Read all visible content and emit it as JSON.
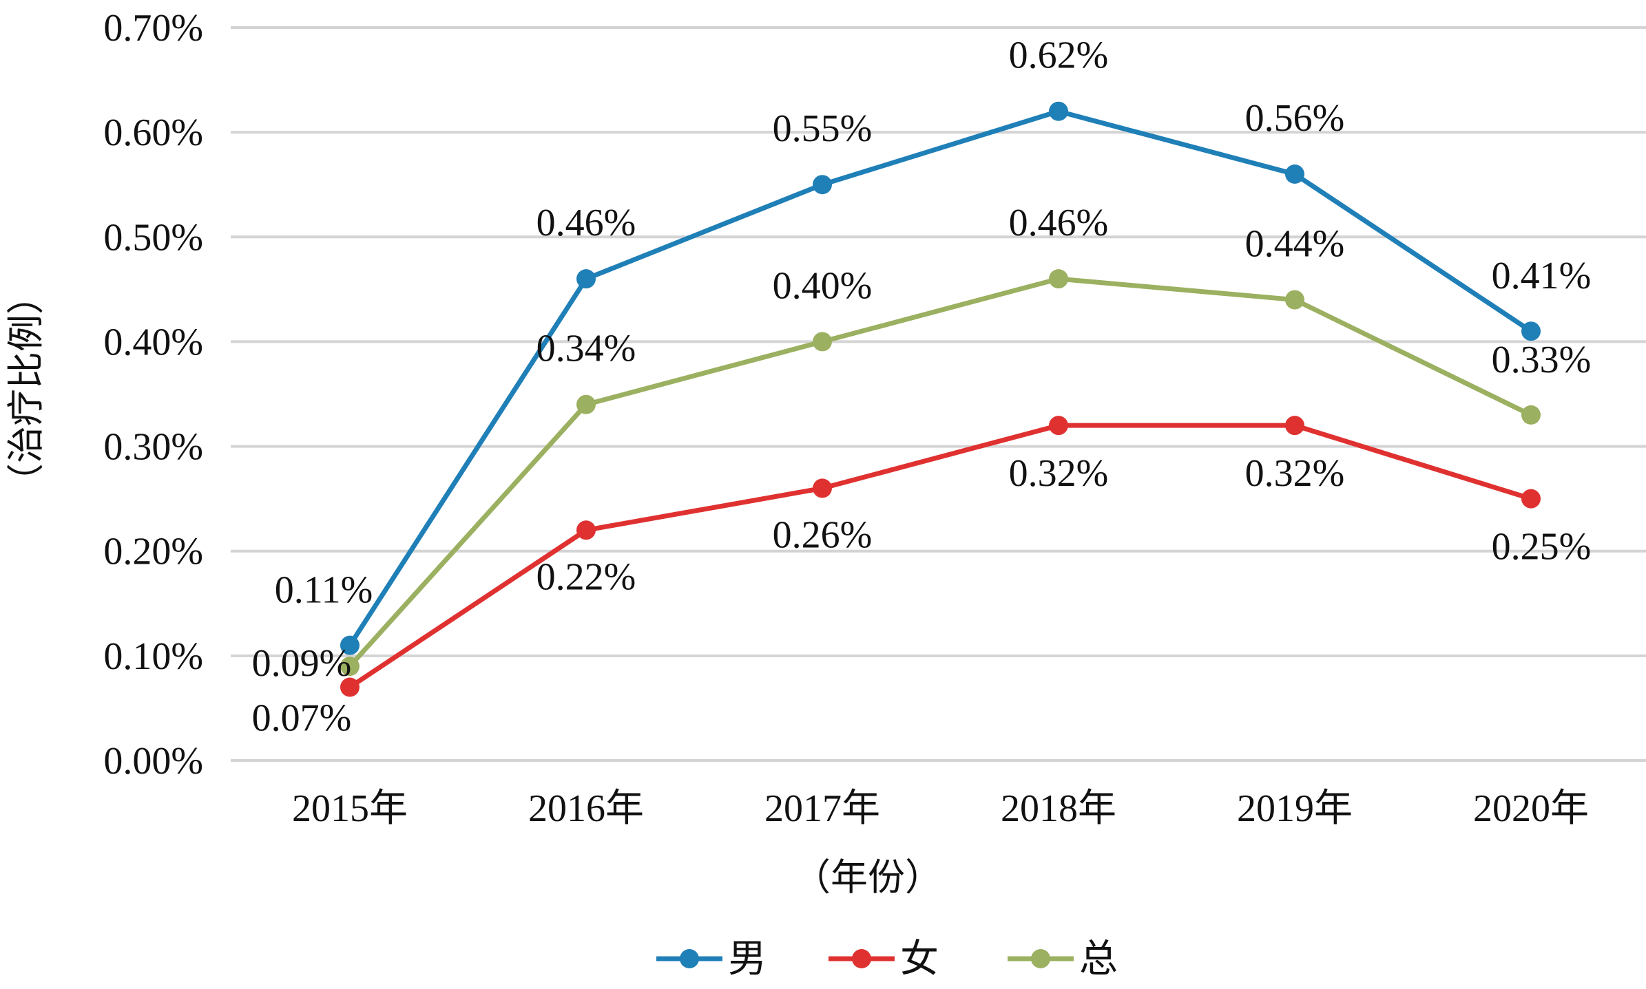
{
  "chart_data": {
    "type": "line",
    "categories": [
      "2015年",
      "2016年",
      "2017年",
      "2018年",
      "2019年",
      "2020年"
    ],
    "series": [
      {
        "name": "男",
        "color": "#1f7fb7",
        "values": [
          0.11,
          0.46,
          0.55,
          0.62,
          0.56,
          0.41
        ],
        "labels": [
          "0.11%",
          "0.46%",
          "0.55%",
          "0.62%",
          "0.56%",
          "0.41%"
        ]
      },
      {
        "name": "女",
        "color": "#e03131",
        "values": [
          0.07,
          0.22,
          0.26,
          0.32,
          0.32,
          0.25
        ],
        "labels": [
          "0.07%",
          "0.22%",
          "0.26%",
          "0.32%",
          "0.32%",
          "0.25%"
        ]
      },
      {
        "name": "总",
        "color": "#9bb060",
        "values": [
          0.09,
          0.34,
          0.4,
          0.46,
          0.44,
          0.33
        ],
        "labels": [
          "0.09%",
          "0.34%",
          "0.40%",
          "0.46%",
          "0.44%",
          "0.33%"
        ]
      }
    ],
    "y_ticks": [
      "0.00%",
      "0.10%",
      "0.20%",
      "0.30%",
      "0.40%",
      "0.50%",
      "0.60%",
      "0.70%"
    ],
    "ylim": [
      0,
      0.7
    ],
    "xlabel": "（年份）",
    "ylabel": "（治疗比例）",
    "grid": true,
    "legend_position": "bottom-center"
  }
}
